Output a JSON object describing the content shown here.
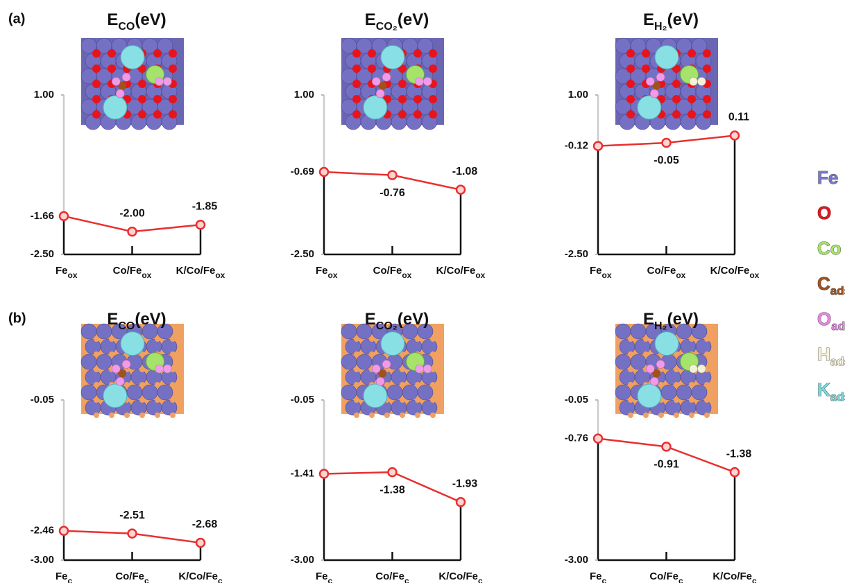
{
  "panels": [
    "(a)",
    "(b)"
  ],
  "chart_data": [
    {
      "type": "line",
      "title_main": "E",
      "title_sub": "CO",
      "title_unit": "(eV)",
      "categories": [
        "Fe",
        "Co/Fe",
        "K/Co/Fe"
      ],
      "category_subscript": "ox",
      "values": [
        -1.66,
        -2.0,
        -1.85
      ],
      "value_labels": [
        null,
        "-2.00",
        "-1.85"
      ],
      "ylim": [
        -2.5,
        1.0
      ],
      "yticks": [
        {
          "value": -2.5,
          "label": "-2.50"
        },
        -1.66,
        {
          "value": 1.0,
          "label": "1.00"
        }
      ],
      "color": "#e8302f"
    },
    {
      "type": "line",
      "title_main": "E",
      "title_sub": "CO₂",
      "title_unit": "(eV)",
      "categories": [
        "Fe",
        "Co/Fe",
        "K/Co/Fe"
      ],
      "category_subscript": "ox",
      "values": [
        -0.69,
        -0.76,
        -1.08
      ],
      "value_labels": [
        null,
        "-0.76",
        "-1.08"
      ],
      "ylim": [
        -2.5,
        1.0
      ],
      "yticks": [
        {
          "value": -2.5,
          "label": "-2.50"
        },
        -0.69,
        {
          "value": 1.0,
          "label": "1.00"
        }
      ],
      "color": "#e8302f"
    },
    {
      "type": "line",
      "title_main": "E",
      "title_sub": "H₂",
      "title_unit": "(eV)",
      "categories": [
        "Fe",
        "Co/Fe",
        "K/Co/Fe"
      ],
      "category_subscript": "ox",
      "values": [
        -0.12,
        -0.05,
        0.11
      ],
      "value_labels": [
        null,
        "-0.05",
        "0.11"
      ],
      "ylim": [
        -2.5,
        1.0
      ],
      "yticks": [
        {
          "value": -2.5,
          "label": "-2.50"
        },
        -0.12,
        {
          "value": 1.0,
          "label": "1.00"
        }
      ],
      "color": "#e8302f"
    },
    {
      "type": "line",
      "title_main": "E",
      "title_sub": "CO",
      "title_unit": "(eV)",
      "categories": [
        "Fe",
        "Co/Fe",
        "K/Co/Fe"
      ],
      "category_subscript": "c",
      "values": [
        -2.46,
        -2.51,
        -2.68
      ],
      "value_labels": [
        null,
        "-2.51",
        "-2.68"
      ],
      "ylim": [
        -3.0,
        -0.05
      ],
      "yticks": [
        {
          "value": -3.0,
          "label": "-3.00"
        },
        -2.46,
        -0.05
      ],
      "color": "#e8302f"
    },
    {
      "type": "line",
      "title_main": "E",
      "title_sub": "CO₂",
      "title_unit": "(eV)",
      "categories": [
        "Fe",
        "Co/Fe",
        "K/Co/Fe"
      ],
      "category_subscript": "c",
      "values": [
        -1.41,
        -1.38,
        -1.93
      ],
      "value_labels": [
        null,
        "-1.38",
        "-1.93"
      ],
      "ylim": [
        -3.0,
        -0.05
      ],
      "yticks": [
        {
          "value": -3.0,
          "label": "-3.00"
        },
        -1.41,
        -0.05
      ],
      "color": "#e8302f"
    },
    {
      "type": "line",
      "title_main": "E",
      "title_sub": "H₂",
      "title_unit": "(eV)",
      "categories": [
        "Fe",
        "Co/Fe",
        "K/Co/Fe"
      ],
      "category_subscript": "c",
      "values": [
        -0.76,
        -0.91,
        -1.38
      ],
      "value_labels": [
        null,
        "-0.91",
        "-1.38"
      ],
      "ylim": [
        -3.0,
        -0.05
      ],
      "yticks": [
        {
          "value": -3.0,
          "label": "-3.00"
        },
        -0.76,
        -0.05
      ],
      "color": "#e8302f"
    }
  ],
  "legend": [
    {
      "name": "Fe",
      "color": "#7b78c8"
    },
    {
      "name": "O",
      "color": "#e8141b"
    },
    {
      "name": "Co",
      "color": "#a6e36b"
    },
    {
      "name": "C",
      "sub": "ads",
      "color": "#a0521d"
    },
    {
      "name": "O",
      "sub": "ads",
      "color": "#e58ae0"
    },
    {
      "name": "H",
      "sub": "ads",
      "color": "#f4f1d8"
    },
    {
      "name": "K",
      "sub": "ads",
      "color": "#79d9dc"
    }
  ]
}
